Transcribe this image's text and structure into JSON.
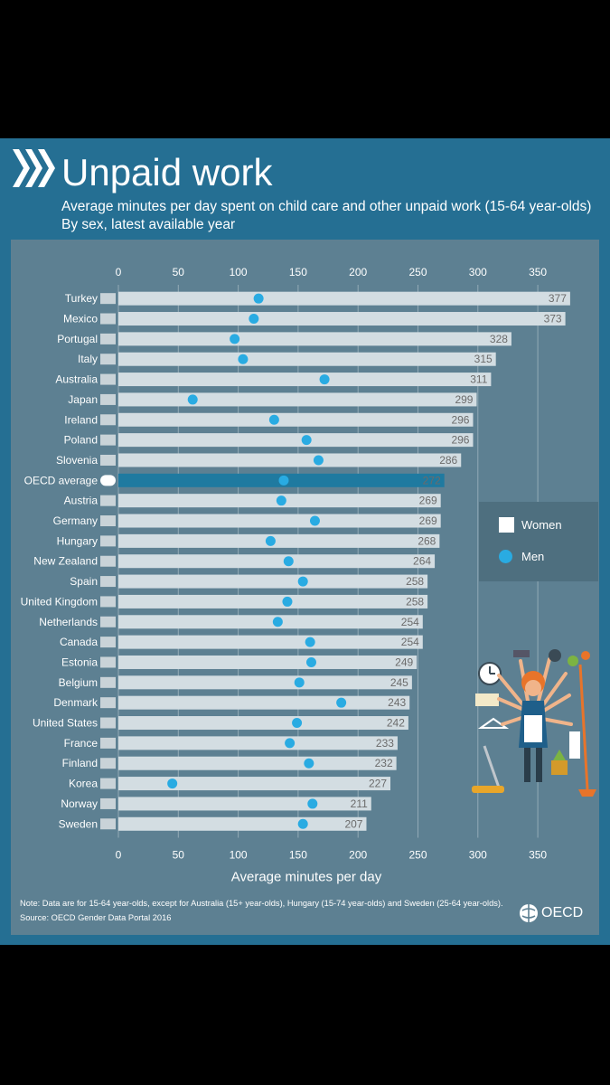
{
  "header": {
    "title": "Unpaid work",
    "subtitle_line1": "Average minutes per day spent on child care and other unpaid work (15-64 year-olds)",
    "subtitle_line2": "By sex, latest available year"
  },
  "legend": {
    "women": "Women",
    "men": "Men"
  },
  "footer": {
    "note": "Note: Data are for 15-64 year-olds, except for Australia (15+ year-olds), Hungary (15-74 year-olds) and Sweden (25-64 year-olds).",
    "source": "Source: OECD Gender Data Portal 2016",
    "brand": "OECD"
  },
  "colors": {
    "card_background": "#256f93",
    "panel_background": "#5d8092",
    "women_bar": "#d3dde2",
    "oecd_bar": "#1f7aa0",
    "men_dot": "#29abe2",
    "gridline": "#bfcdd4"
  },
  "chart_data": {
    "type": "bar",
    "orientation": "horizontal",
    "xlabel": "Average minutes per day",
    "xlim": [
      0,
      377
    ],
    "xticks": [
      0,
      50,
      100,
      150,
      200,
      250,
      300,
      350
    ],
    "grid": true,
    "legend_position": "right",
    "highlight_category": "OECD average",
    "categories": [
      "Turkey",
      "Mexico",
      "Portugal",
      "Italy",
      "Australia",
      "Japan",
      "Ireland",
      "Poland",
      "Slovenia",
      "OECD average",
      "Austria",
      "Germany",
      "Hungary",
      "New Zealand",
      "Spain",
      "United Kingdom",
      "Netherlands",
      "Canada",
      "Estonia",
      "Belgium",
      "Denmark",
      "United States",
      "France",
      "Finland",
      "Korea",
      "Norway",
      "Sweden"
    ],
    "series": [
      {
        "name": "Women",
        "type": "bar",
        "values": [
          377,
          373,
          328,
          315,
          311,
          299,
          296,
          296,
          286,
          272,
          269,
          269,
          268,
          264,
          258,
          258,
          254,
          254,
          249,
          245,
          243,
          242,
          233,
          232,
          227,
          211,
          207
        ]
      },
      {
        "name": "Men",
        "type": "scatter",
        "values": [
          117,
          113,
          97,
          104,
          172,
          62,
          130,
          157,
          167,
          138,
          136,
          164,
          127,
          142,
          154,
          141,
          133,
          160,
          161,
          151,
          186,
          149,
          143,
          159,
          45,
          162,
          154
        ]
      }
    ]
  }
}
